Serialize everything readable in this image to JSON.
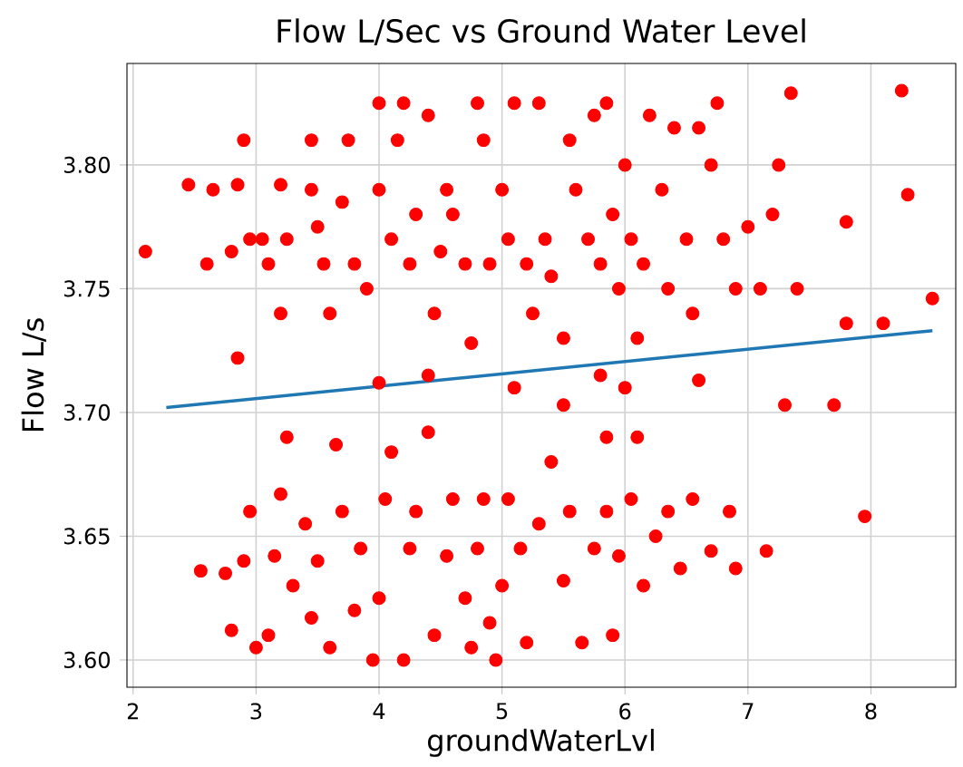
{
  "chart_data": {
    "type": "scatter",
    "title": "Flow L/Sec vs Ground Water Level",
    "xlabel": "groundWaterLvl",
    "ylabel": "Flow L/s",
    "xlim": [
      1.95,
      8.69
    ],
    "ylim": [
      3.589,
      3.841
    ],
    "xticks": [
      2,
      3,
      4,
      5,
      6,
      7,
      8
    ],
    "yticks": [
      {
        "value": 3.6,
        "label": "3.60"
      },
      {
        "value": 3.65,
        "label": "3.65"
      },
      {
        "value": 3.7,
        "label": "3.70"
      },
      {
        "value": 3.75,
        "label": "3.75"
      },
      {
        "value": 3.8,
        "label": "3.80"
      }
    ],
    "grid": true,
    "series": [
      {
        "color": "#ff0000",
        "marker": "circle",
        "x": [
          2.1,
          2.45,
          2.6,
          2.65,
          2.8,
          2.85,
          2.9,
          2.95,
          2.85,
          3.05,
          3.1,
          3.2,
          3.2,
          3.25,
          3.45,
          3.45,
          3.5,
          3.55,
          3.6,
          3.7,
          3.75,
          3.8,
          3.9,
          4.0,
          4.0,
          4.0,
          4.1,
          4.15,
          4.2,
          4.25,
          4.3,
          4.4,
          4.45,
          4.5,
          4.55,
          4.6,
          4.7,
          4.75,
          4.8,
          4.85,
          4.9,
          5.0,
          5.05,
          5.1,
          5.2,
          5.25,
          5.3,
          5.35,
          5.4,
          5.5,
          5.55,
          5.6,
          5.7,
          5.75,
          5.8,
          5.85,
          5.9,
          5.95,
          6.0,
          6.05,
          6.1,
          6.15,
          6.2,
          6.3,
          6.35,
          6.4,
          6.5,
          6.55,
          6.6,
          6.7,
          6.75,
          6.8,
          6.9,
          7.0,
          7.1,
          7.2,
          7.25,
          7.35,
          7.4,
          7.3,
          7.7,
          7.8,
          7.8,
          8.1,
          8.25,
          8.3,
          8.5,
          5.1,
          5.5,
          6.0,
          6.6,
          4.4,
          5.8,
          2.55,
          2.75,
          2.8,
          2.9,
          2.95,
          3.0,
          3.1,
          3.15,
          3.2,
          3.25,
          3.3,
          3.4,
          3.5,
          3.6,
          3.65,
          3.7,
          3.8,
          3.85,
          3.95,
          4.0,
          4.05,
          4.1,
          4.2,
          4.25,
          4.3,
          4.4,
          4.45,
          4.55,
          4.6,
          4.7,
          4.75,
          4.8,
          4.85,
          4.95,
          5.0,
          5.05,
          5.15,
          5.2,
          5.3,
          5.4,
          5.5,
          5.55,
          5.65,
          5.75,
          5.85,
          5.9,
          5.95,
          6.05,
          6.15,
          6.25,
          6.35,
          6.45,
          6.55,
          6.7,
          6.85,
          6.9,
          7.15,
          7.95,
          5.85,
          6.1,
          4.9,
          3.45
        ],
        "values": [
          3.765,
          3.792,
          3.76,
          3.79,
          3.765,
          3.792,
          3.81,
          3.77,
          3.722,
          3.77,
          3.76,
          3.792,
          3.74,
          3.77,
          3.81,
          3.79,
          3.775,
          3.76,
          3.74,
          3.785,
          3.81,
          3.76,
          3.75,
          3.825,
          3.79,
          3.712,
          3.77,
          3.81,
          3.825,
          3.76,
          3.78,
          3.82,
          3.74,
          3.765,
          3.79,
          3.78,
          3.76,
          3.728,
          3.825,
          3.81,
          3.76,
          3.79,
          3.77,
          3.825,
          3.76,
          3.74,
          3.825,
          3.77,
          3.755,
          3.73,
          3.81,
          3.79,
          3.77,
          3.82,
          3.76,
          3.825,
          3.78,
          3.75,
          3.8,
          3.77,
          3.73,
          3.76,
          3.82,
          3.79,
          3.75,
          3.815,
          3.77,
          3.74,
          3.815,
          3.8,
          3.825,
          3.77,
          3.75,
          3.775,
          3.75,
          3.78,
          3.8,
          3.829,
          3.75,
          3.703,
          3.703,
          3.777,
          3.736,
          3.736,
          3.83,
          3.788,
          3.746,
          3.71,
          3.703,
          3.71,
          3.713,
          3.715,
          3.715,
          3.636,
          3.635,
          3.612,
          3.64,
          3.66,
          3.605,
          3.61,
          3.642,
          3.667,
          3.69,
          3.63,
          3.655,
          3.64,
          3.605,
          3.687,
          3.66,
          3.62,
          3.645,
          3.6,
          3.625,
          3.665,
          3.684,
          3.6,
          3.645,
          3.66,
          3.692,
          3.61,
          3.642,
          3.665,
          3.625,
          3.605,
          3.645,
          3.665,
          3.6,
          3.63,
          3.665,
          3.645,
          3.607,
          3.655,
          3.68,
          3.632,
          3.66,
          3.607,
          3.645,
          3.66,
          3.61,
          3.642,
          3.665,
          3.63,
          3.65,
          3.66,
          3.637,
          3.665,
          3.644,
          3.66,
          3.637,
          3.644,
          3.658,
          3.69,
          3.69,
          3.615,
          3.617
        ]
      },
      {
        "type": "line",
        "marker": "none",
        "color": "#1f77b4",
        "x": [
          2.27,
          8.5
        ],
        "values": [
          3.702,
          3.733
        ]
      }
    ]
  }
}
